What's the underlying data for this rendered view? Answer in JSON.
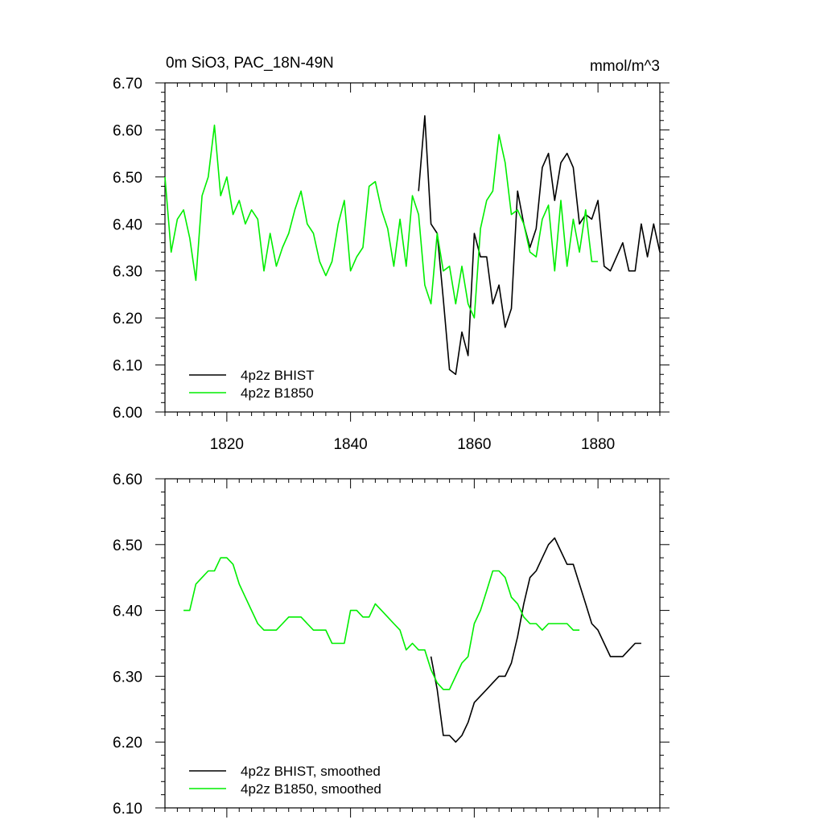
{
  "chart_data": [
    {
      "type": "line",
      "title": "0m SiO3, PAC_18N-49N",
      "units": "mmol/m^3",
      "xlim": [
        1810,
        1890
      ],
      "ylim": [
        6.0,
        6.7
      ],
      "xticks": [
        1820,
        1840,
        1860,
        1880
      ],
      "xtick_labels": [
        "1820",
        "1840",
        "1860",
        "1880"
      ],
      "yticks": [
        6.0,
        6.1,
        6.2,
        6.3,
        6.4,
        6.5,
        6.6,
        6.7
      ],
      "ytick_labels": [
        "6.00",
        "6.10",
        "6.20",
        "6.30",
        "6.40",
        "6.50",
        "6.60",
        "6.70"
      ],
      "grid": false,
      "legend_position": "bottom-left",
      "series": [
        {
          "name": "4p2z BHIST",
          "color": "#000000",
          "x": [
            1851,
            1852,
            1853,
            1854,
            1855,
            1856,
            1857,
            1858,
            1859,
            1860,
            1861,
            1862,
            1863,
            1864,
            1865,
            1866,
            1867,
            1868,
            1869,
            1870,
            1871,
            1872,
            1873,
            1874,
            1875,
            1876,
            1877,
            1878,
            1879,
            1880,
            1881,
            1882,
            1883,
            1884,
            1885,
            1886,
            1887,
            1888,
            1889,
            1890
          ],
          "y": [
            6.47,
            6.63,
            6.4,
            6.38,
            6.24,
            6.09,
            6.08,
            6.17,
            6.12,
            6.38,
            6.33,
            6.33,
            6.23,
            6.27,
            6.18,
            6.22,
            6.47,
            6.4,
            6.35,
            6.39,
            6.52,
            6.55,
            6.45,
            6.53,
            6.55,
            6.52,
            6.4,
            6.42,
            6.41,
            6.45,
            6.31,
            6.3,
            6.33,
            6.36,
            6.3,
            6.3,
            6.4,
            6.33,
            6.4,
            6.34
          ]
        },
        {
          "name": "4p2z B1850",
          "color": "#00ee00",
          "x": [
            1810,
            1811,
            1812,
            1813,
            1814,
            1815,
            1816,
            1817,
            1818,
            1819,
            1820,
            1821,
            1822,
            1823,
            1824,
            1825,
            1826,
            1827,
            1828,
            1829,
            1830,
            1831,
            1832,
            1833,
            1834,
            1835,
            1836,
            1837,
            1838,
            1839,
            1840,
            1841,
            1842,
            1843,
            1844,
            1845,
            1846,
            1847,
            1848,
            1849,
            1850,
            1851,
            1852,
            1853,
            1854,
            1855,
            1856,
            1857,
            1858,
            1859,
            1860,
            1861,
            1862,
            1863,
            1864,
            1865,
            1866,
            1867,
            1868,
            1869,
            1870,
            1871,
            1872,
            1873,
            1874,
            1875,
            1876,
            1877,
            1878,
            1879,
            1880
          ],
          "y": [
            6.5,
            6.34,
            6.41,
            6.43,
            6.37,
            6.28,
            6.46,
            6.5,
            6.61,
            6.46,
            6.5,
            6.42,
            6.45,
            6.4,
            6.43,
            6.41,
            6.3,
            6.38,
            6.31,
            6.35,
            6.38,
            6.43,
            6.47,
            6.4,
            6.38,
            6.32,
            6.29,
            6.32,
            6.4,
            6.45,
            6.3,
            6.33,
            6.35,
            6.48,
            6.49,
            6.43,
            6.39,
            6.31,
            6.41,
            6.31,
            6.46,
            6.42,
            6.27,
            6.23,
            6.38,
            6.3,
            6.31,
            6.23,
            6.31,
            6.23,
            6.2,
            6.39,
            6.45,
            6.47,
            6.59,
            6.53,
            6.42,
            6.43,
            6.4,
            6.34,
            6.33,
            6.41,
            6.44,
            6.3,
            6.45,
            6.31,
            6.41,
            6.34,
            6.43,
            6.32,
            6.32
          ]
        }
      ]
    },
    {
      "type": "line",
      "title": "",
      "xlim": [
        1810,
        1890
      ],
      "ylim": [
        6.1,
        6.6
      ],
      "xticks": [
        1820,
        1840,
        1860,
        1880
      ],
      "yticks": [
        6.1,
        6.2,
        6.3,
        6.4,
        6.5,
        6.6
      ],
      "ytick_labels": [
        "6.10",
        "6.20",
        "6.30",
        "6.40",
        "6.50",
        "6.60"
      ],
      "grid": false,
      "legend_position": "bottom-left",
      "series": [
        {
          "name": "4p2z BHIST, smoothed",
          "color": "#000000",
          "x": [
            1853,
            1854,
            1855,
            1856,
            1857,
            1858,
            1859,
            1860,
            1861,
            1862,
            1863,
            1864,
            1865,
            1866,
            1867,
            1868,
            1869,
            1870,
            1871,
            1872,
            1873,
            1874,
            1875,
            1876,
            1877,
            1878,
            1879,
            1880,
            1881,
            1882,
            1883,
            1884,
            1885,
            1886,
            1887
          ],
          "y": [
            6.33,
            6.28,
            6.21,
            6.21,
            6.2,
            6.21,
            6.23,
            6.26,
            6.27,
            6.28,
            6.29,
            6.3,
            6.3,
            6.32,
            6.36,
            6.41,
            6.45,
            6.46,
            6.48,
            6.5,
            6.51,
            6.49,
            6.47,
            6.47,
            6.44,
            6.41,
            6.38,
            6.37,
            6.35,
            6.33,
            6.33,
            6.33,
            6.34,
            6.35,
            6.35
          ]
        },
        {
          "name": "4p2z B1850, smoothed",
          "color": "#00ee00",
          "x": [
            1813,
            1814,
            1815,
            1816,
            1817,
            1818,
            1819,
            1820,
            1821,
            1822,
            1823,
            1824,
            1825,
            1826,
            1827,
            1828,
            1829,
            1830,
            1831,
            1832,
            1833,
            1834,
            1835,
            1836,
            1837,
            1838,
            1839,
            1840,
            1841,
            1842,
            1843,
            1844,
            1845,
            1846,
            1847,
            1848,
            1849,
            1850,
            1851,
            1852,
            1853,
            1854,
            1855,
            1856,
            1857,
            1858,
            1859,
            1860,
            1861,
            1862,
            1863,
            1864,
            1865,
            1866,
            1867,
            1868,
            1869,
            1870,
            1871,
            1872,
            1873,
            1874,
            1875,
            1876,
            1877
          ],
          "y": [
            6.4,
            6.4,
            6.44,
            6.45,
            6.46,
            6.46,
            6.48,
            6.48,
            6.47,
            6.44,
            6.42,
            6.4,
            6.38,
            6.37,
            6.37,
            6.37,
            6.38,
            6.39,
            6.39,
            6.39,
            6.38,
            6.37,
            6.37,
            6.37,
            6.35,
            6.35,
            6.35,
            6.4,
            6.4,
            6.39,
            6.39,
            6.41,
            6.4,
            6.39,
            6.38,
            6.37,
            6.34,
            6.35,
            6.34,
            6.34,
            6.31,
            6.29,
            6.28,
            6.28,
            6.3,
            6.32,
            6.33,
            6.38,
            6.4,
            6.43,
            6.46,
            6.46,
            6.45,
            6.42,
            6.41,
            6.39,
            6.38,
            6.38,
            6.37,
            6.38,
            6.38,
            6.38,
            6.38,
            6.37,
            6.37
          ]
        }
      ]
    }
  ]
}
